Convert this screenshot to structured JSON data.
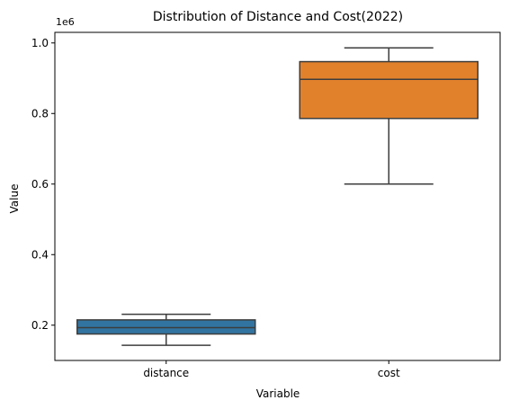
{
  "chart_data": {
    "type": "box",
    "title": "Distribution of Distance and Cost(2022)",
    "xlabel": "Variable",
    "ylabel": "Value",
    "y_offset_label": "1e6",
    "yticks": [
      0.2,
      0.4,
      0.6,
      0.8,
      1.0
    ],
    "ytick_labels": [
      "0.2",
      "0.4",
      "0.6",
      "0.8",
      "1.0"
    ],
    "ylim": [
      0.1,
      1.03
    ],
    "categories": [
      "distance",
      "cost"
    ],
    "boxes": [
      {
        "name": "distance",
        "min": 0.143,
        "q1": 0.175,
        "median": 0.193,
        "q3": 0.215,
        "max": 0.231,
        "color": "#3274a1"
      },
      {
        "name": "cost",
        "min": 0.6,
        "q1": 0.786,
        "median": 0.897,
        "q3": 0.947,
        "max": 0.986,
        "color": "#e1812c"
      }
    ],
    "grid": false,
    "legend": "none"
  }
}
